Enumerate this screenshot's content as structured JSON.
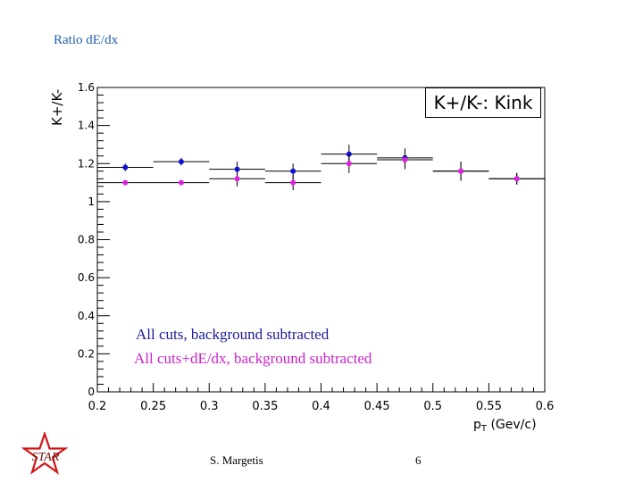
{
  "slide": {
    "title": "Ratio dE/dx",
    "author": "S. Margetis",
    "page_number": "6",
    "logo_text": "STAR"
  },
  "colors": {
    "series_blue": "#1010d8",
    "series_magenta": "#e020e0",
    "title_blue": "#1f5fae",
    "logo_red": "#d01818"
  },
  "chart_data": {
    "type": "scatter",
    "title": "K+/K-: Kink",
    "xlabel": "pT (Gev/c)",
    "xlabel_main": "p",
    "xlabel_sub": "T",
    "xlabel_units": " (Gev/c)",
    "ylabel": "K+/K-",
    "xlim": [
      0.2,
      0.6
    ],
    "ylim": [
      0,
      1.6
    ],
    "x_ticks": [
      "0.2",
      "0.25",
      "0.3",
      "0.35",
      "0.4",
      "0.45",
      "0.5",
      "0.55",
      "0.6"
    ],
    "y_ticks": [
      "0",
      "0.2",
      "0.4",
      "0.6",
      "0.8",
      "1",
      "1.2",
      "1.4",
      "1.6"
    ],
    "grid": false,
    "legend": "bottom-left",
    "series": [
      {
        "name": "All cuts, background subtracted",
        "color": "#1010d8",
        "points": [
          {
            "x": 0.225,
            "y": 1.18,
            "xerr": 0.025,
            "yerr": 0.02
          },
          {
            "x": 0.275,
            "y": 1.21,
            "xerr": 0.025,
            "yerr": 0.02
          },
          {
            "x": 0.325,
            "y": 1.17,
            "xerr": 0.025,
            "yerr": 0.04
          },
          {
            "x": 0.375,
            "y": 1.16,
            "xerr": 0.025,
            "yerr": 0.04
          },
          {
            "x": 0.425,
            "y": 1.25,
            "xerr": 0.025,
            "yerr": 0.05
          },
          {
            "x": 0.475,
            "y": 1.23,
            "xerr": 0.025,
            "yerr": 0.05
          },
          {
            "x": 0.525,
            "y": 1.16,
            "xerr": 0.025,
            "yerr": 0.05
          },
          {
            "x": 0.575,
            "y": 1.12,
            "xerr": 0.025,
            "yerr": 0.03
          }
        ]
      },
      {
        "name": "All cuts+dE/dx, background subtracted",
        "color": "#e020e0",
        "points": [
          {
            "x": 0.225,
            "y": 1.1,
            "xerr": 0.025,
            "yerr": 0.01
          },
          {
            "x": 0.275,
            "y": 1.1,
            "xerr": 0.025,
            "yerr": 0.01
          },
          {
            "x": 0.325,
            "y": 1.12,
            "xerr": 0.025,
            "yerr": 0.04
          },
          {
            "x": 0.375,
            "y": 1.1,
            "xerr": 0.025,
            "yerr": 0.04
          },
          {
            "x": 0.425,
            "y": 1.2,
            "xerr": 0.025,
            "yerr": 0.05
          },
          {
            "x": 0.475,
            "y": 1.22,
            "xerr": 0.025,
            "yerr": 0.05
          },
          {
            "x": 0.525,
            "y": 1.16,
            "xerr": 0.025,
            "yerr": 0.05
          },
          {
            "x": 0.575,
            "y": 1.12,
            "xerr": 0.025,
            "yerr": 0.03
          }
        ]
      }
    ]
  }
}
